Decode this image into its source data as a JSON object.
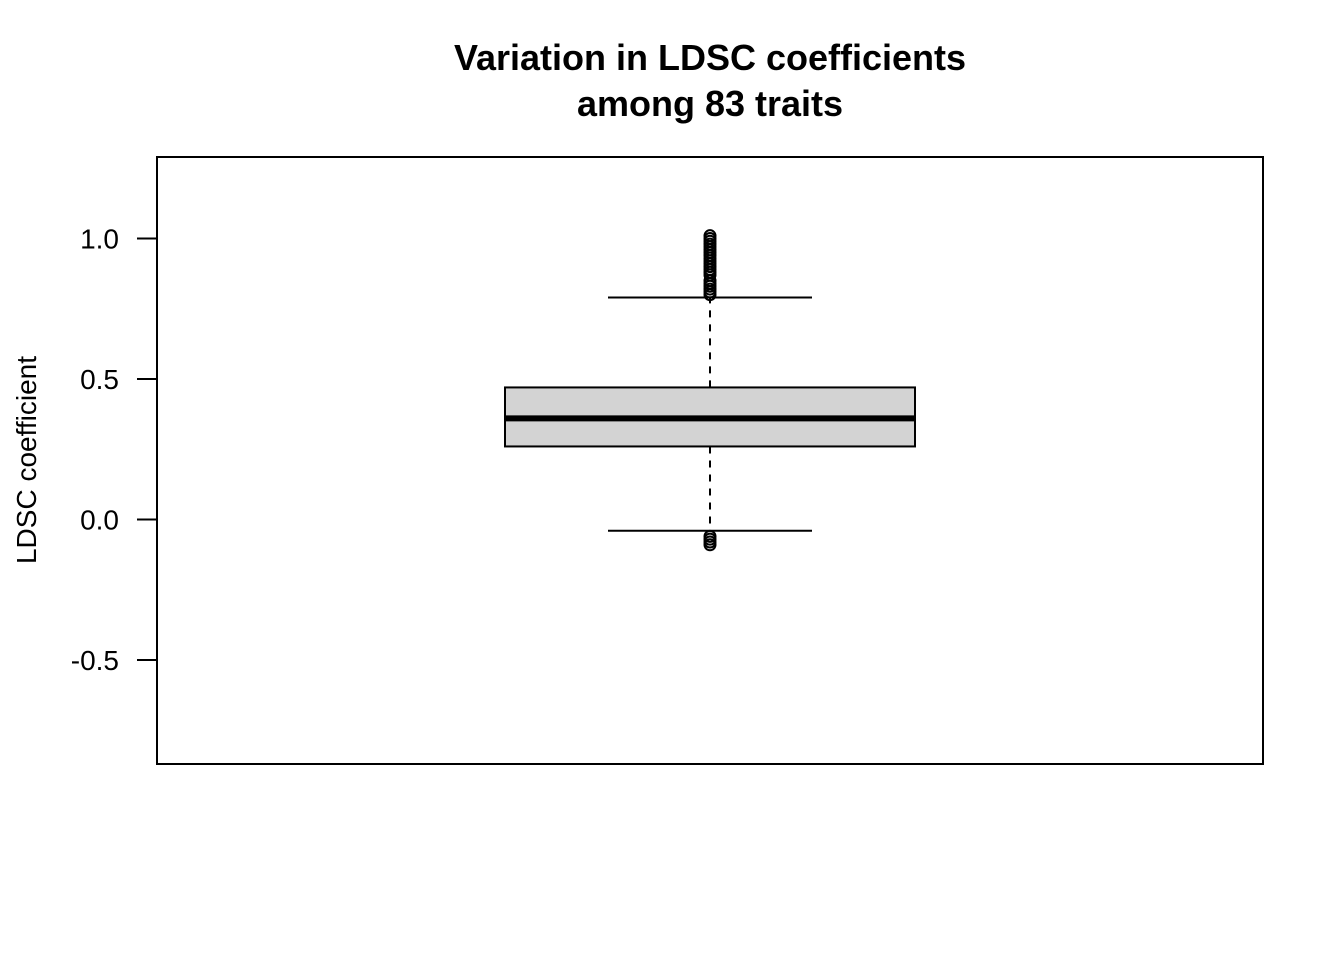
{
  "chart_data": {
    "type": "boxplot",
    "title": "Variation in LDSC coefficients",
    "subtitle": "among 83 traits",
    "xlabel": "",
    "ylabel": "LDSC coefficient",
    "ylim": [
      -0.87,
      1.29
    ],
    "yticks": [
      -0.5,
      0.0,
      0.5,
      1.0
    ],
    "ytick_labels": [
      "-0.5",
      "0.0",
      "0.5",
      "1.0"
    ],
    "grid": false,
    "box": {
      "lower_whisker": -0.04,
      "q1": 0.26,
      "median": 0.36,
      "q3": 0.47,
      "upper_whisker": 0.79,
      "fill": "#d3d3d3"
    },
    "outliers": [
      0.8,
      0.81,
      0.82,
      0.83,
      0.84,
      0.85,
      0.87,
      0.88,
      0.89,
      0.9,
      0.91,
      0.92,
      0.93,
      0.94,
      0.95,
      0.96,
      0.97,
      0.98,
      0.99,
      1.0,
      1.01,
      -0.06,
      -0.07,
      -0.08,
      -0.09
    ]
  }
}
